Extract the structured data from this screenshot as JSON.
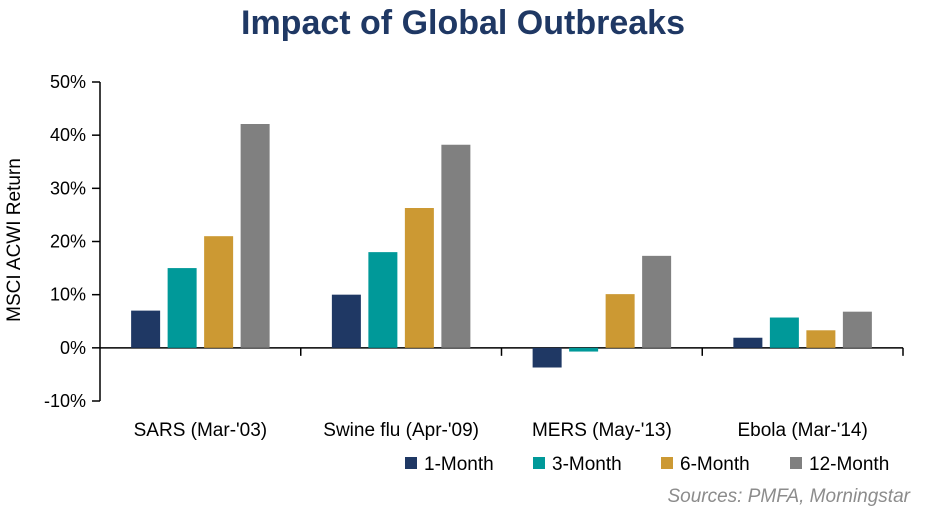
{
  "chart_data": {
    "type": "bar",
    "title": "Impact of Global Outbreaks",
    "xlabel": "",
    "ylabel": "MSCI ACWI Return",
    "ylim": [
      -10,
      50
    ],
    "yticks": [
      -10,
      0,
      10,
      20,
      30,
      40,
      50
    ],
    "ytick_labels": [
      "-10%",
      "0%",
      "10%",
      "20%",
      "30%",
      "40%",
      "50%"
    ],
    "categories": [
      "SARS (Mar-'03)",
      "Swine flu (Apr-'09)",
      "MERS (May-'13)",
      "Ebola (Mar-'14)"
    ],
    "series": [
      {
        "name": "1-Month",
        "color": "#1f3864",
        "values": [
          7.0,
          10.0,
          -3.7,
          1.9
        ]
      },
      {
        "name": "3-Month",
        "color": "#009999",
        "values": [
          15.0,
          18.0,
          -0.7,
          5.7
        ]
      },
      {
        "name": "6-Month",
        "color": "#cc9933",
        "values": [
          21.0,
          26.3,
          10.1,
          3.3
        ]
      },
      {
        "name": "12-Month",
        "color": "#808080",
        "values": [
          42.1,
          38.2,
          17.3,
          6.8
        ]
      }
    ],
    "legend_position": "bottom-right",
    "grid": false
  },
  "source_note": "Sources: PMFA, Morningstar"
}
